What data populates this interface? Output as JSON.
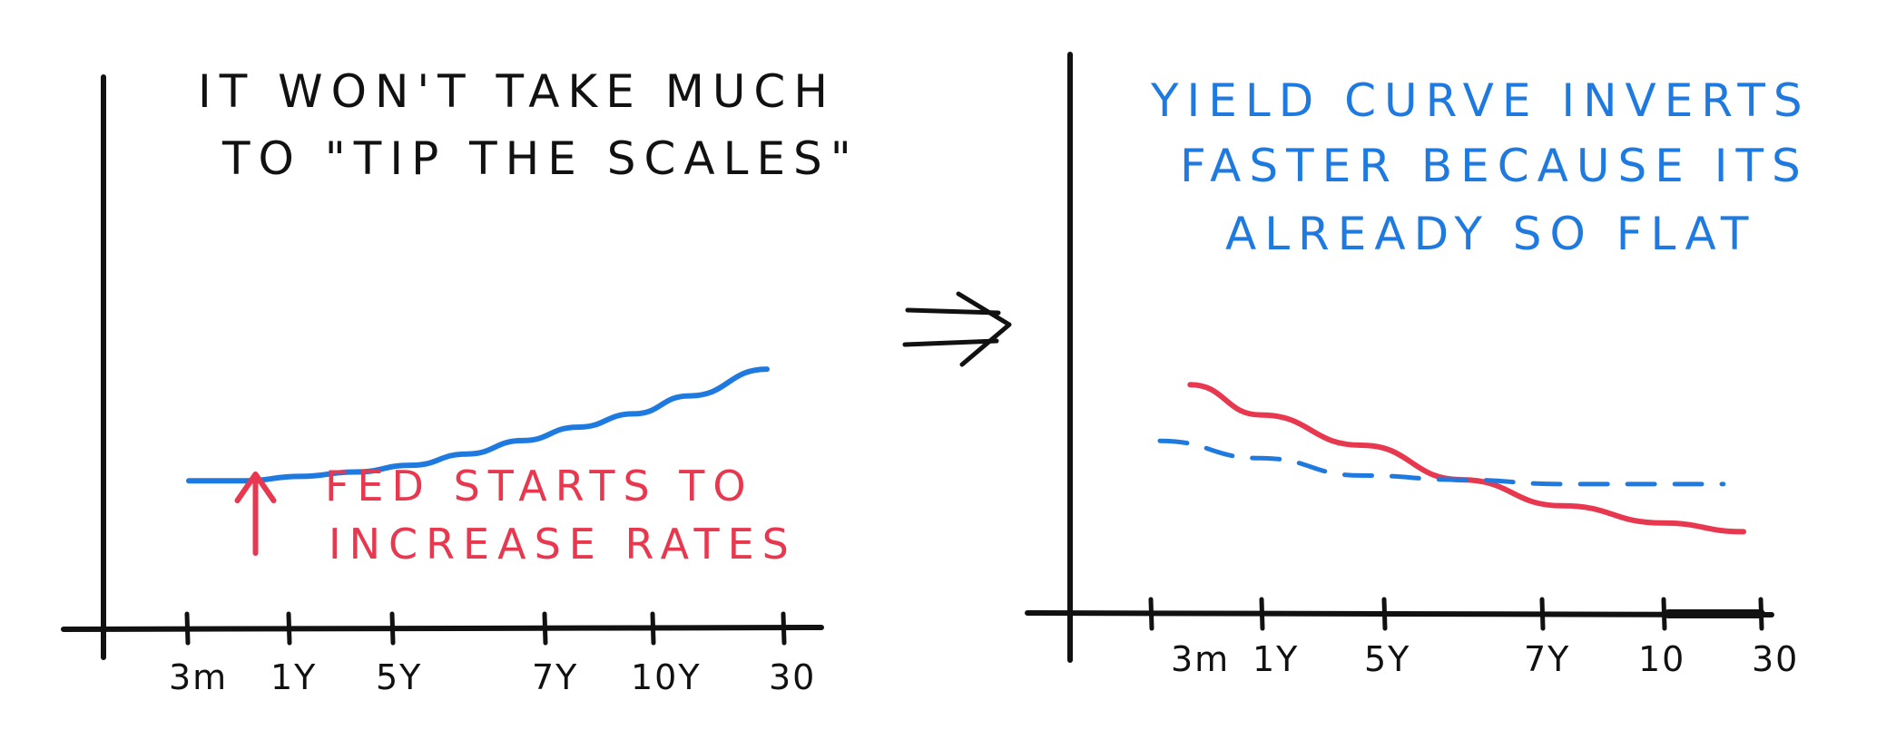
{
  "colors": {
    "ink": "#111111",
    "blue": "#1f7ae0",
    "red": "#e8384f"
  },
  "arrow_glyph": "arrow-right-double",
  "chart_data": [
    {
      "type": "line",
      "title": "",
      "annotations": [
        {
          "id": "title_line1",
          "text": "IT WON'T TAKE MUCH",
          "color": "ink"
        },
        {
          "id": "title_line2",
          "text": "TO \"TIP THE SCALES\"",
          "color": "ink"
        },
        {
          "id": "note_line1",
          "text": "FED STARTS TO",
          "color": "red"
        },
        {
          "id": "note_line2",
          "text": "INCREASE RATES",
          "color": "red"
        }
      ],
      "categories": [
        "3m",
        "1Y",
        "5Y",
        "7Y",
        "10Y",
        "30"
      ],
      "ylim": [
        0,
        10
      ],
      "grid": false,
      "series": [
        {
          "style": "solid",
          "color": "blue",
          "x": [
            0,
            0.5,
            1,
            1.5,
            2,
            2.5,
            3,
            3.5,
            4,
            4.5,
            5.2
          ],
          "values": [
            3.3,
            3.3,
            3.4,
            3.5,
            3.65,
            3.9,
            4.2,
            4.5,
            4.8,
            5.2,
            5.8
          ]
        }
      ],
      "marker": {
        "type": "up-arrow",
        "x": 0.6,
        "color": "red"
      }
    },
    {
      "type": "line",
      "title": "",
      "annotations": [
        {
          "id": "title_line1",
          "text": "YIELD CURVE INVERTS",
          "color": "blue"
        },
        {
          "id": "title_line2",
          "text": "FASTER BECAUSE ITS",
          "color": "blue"
        },
        {
          "id": "title_line3",
          "text": "ALREADY SO FLAT",
          "color": "blue"
        }
      ],
      "categories": [
        "3m",
        "1Y",
        "5Y",
        "7Y",
        "10",
        "30"
      ],
      "ylim": [
        0,
        10
      ],
      "grid": false,
      "series": [
        {
          "style": "solid",
          "color": "red",
          "x": [
            0.3,
            1,
            2,
            3,
            4,
            5,
            5.8
          ],
          "values": [
            5.3,
            4.6,
            3.9,
            3.1,
            2.5,
            2.1,
            1.9
          ]
        },
        {
          "style": "dashed",
          "color": "blue",
          "x": [
            0,
            1,
            2,
            3,
            4,
            5,
            5.6
          ],
          "values": [
            4.0,
            3.6,
            3.2,
            3.1,
            3.0,
            3.0,
            3.0
          ]
        }
      ]
    }
  ]
}
